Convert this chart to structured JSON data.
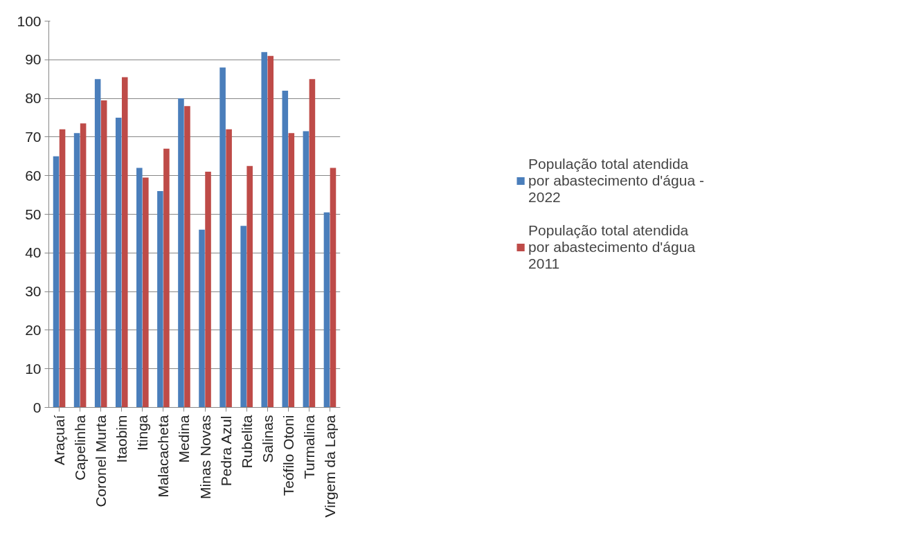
{
  "chart_data": {
    "type": "bar",
    "categories": [
      "Araçuaí",
      "Capelinha",
      "Coronel Murta",
      "Itaobim",
      "Itinga",
      "Malacacheta",
      "Medina",
      "Minas Novas",
      "Pedra Azul",
      "Rubelita",
      "Salinas",
      "Teófilo Otoni",
      "Turmalina",
      "Virgem da Lapa"
    ],
    "series": [
      {
        "name": "População total atendida por abastecimento d'água - 2022",
        "color": "#4a7ebb",
        "values": [
          65,
          71,
          85,
          75,
          62,
          56,
          80,
          46,
          88,
          47,
          92,
          82,
          71.5,
          50.5
        ]
      },
      {
        "name": "População total atendida por abastecimento d'água 2011",
        "color": "#be4b48",
        "values": [
          72,
          73.5,
          79.5,
          85.5,
          59.5,
          67,
          78,
          61,
          72,
          62.5,
          91,
          71,
          85,
          62
        ]
      }
    ],
    "ylim": [
      0,
      100
    ],
    "yticks": [
      0,
      10,
      20,
      30,
      40,
      50,
      60,
      70,
      80,
      90,
      100
    ],
    "grid": "y",
    "legend": "right"
  }
}
